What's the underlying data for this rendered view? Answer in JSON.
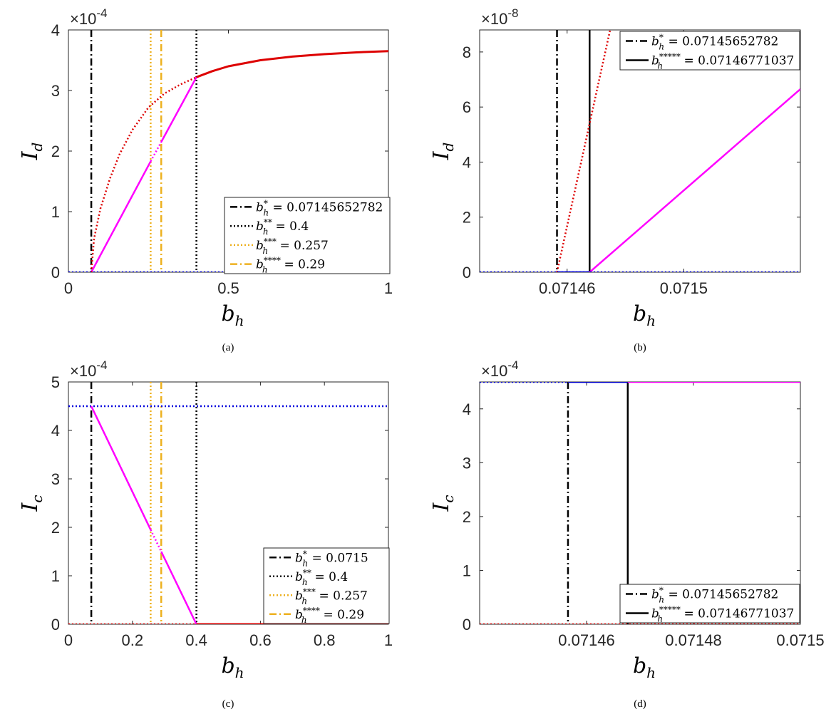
{
  "chart_data": [
    {
      "id": "a",
      "type": "line",
      "caption": "(a)",
      "xlabel": "b_h",
      "ylabel_main": "I",
      "ylabel_sub": "d",
      "xlim": [
        0,
        1
      ],
      "ylim": [
        0,
        4
      ],
      "y_multiplier_base": "×10",
      "y_multiplier_exp": "-4",
      "xticks": [
        0,
        0.5,
        1
      ],
      "xtick_labels": [
        "0",
        "0.5",
        "1"
      ],
      "yticks": [
        0,
        1,
        2,
        3,
        4
      ],
      "ytick_labels": [
        "0",
        "1",
        "2",
        "3",
        "4"
      ],
      "grid": false,
      "legend_position": "bottom-right",
      "vlines": [
        {
          "x": 0.07145652782,
          "style": "dashdot",
          "color": "#000000",
          "label_main": "b",
          "label_sup": "*",
          "label_value": " = 0.07145652782"
        },
        {
          "x": 0.4,
          "style": "dotted",
          "color": "#000000",
          "label_main": "b",
          "label_sup": "**",
          "label_value": " = 0.4"
        },
        {
          "x": 0.257,
          "style": "dotted",
          "color": "#EDB120",
          "label_main": "b",
          "label_sup": "***",
          "label_value": " = 0.257"
        },
        {
          "x": 0.29,
          "style": "dashdot",
          "color": "#EDB120",
          "label_main": "b",
          "label_sup": "****",
          "label_value": " = 0.29"
        }
      ],
      "series": [
        {
          "color": "#FF00FF",
          "style": "solid",
          "width": 2.5,
          "x": [
            0.07146,
            0.257
          ],
          "y": [
            0,
            1.83
          ]
        },
        {
          "color": "#FF00FF",
          "style": "dotted",
          "width": 2.5,
          "x": [
            0.257,
            0.29
          ],
          "y": [
            1.83,
            2.15
          ]
        },
        {
          "color": "#FF00FF",
          "style": "solid",
          "width": 2.5,
          "x": [
            0.29,
            0.4
          ],
          "y": [
            2.15,
            3.22
          ]
        },
        {
          "color": "#DD0000",
          "style": "dotted",
          "width": 2.5,
          "x": [
            0.07146,
            0.08,
            0.1,
            0.13,
            0.16,
            0.2,
            0.25,
            0.3,
            0.35,
            0.4
          ],
          "y": [
            0,
            0.55,
            1.05,
            1.55,
            1.95,
            2.35,
            2.72,
            2.95,
            3.1,
            3.22
          ]
        },
        {
          "color": "#DD0000",
          "style": "solid",
          "width": 3,
          "x": [
            0.4,
            0.45,
            0.5,
            0.6,
            0.7,
            0.8,
            0.9,
            1.0
          ],
          "y": [
            3.22,
            3.32,
            3.4,
            3.5,
            3.56,
            3.6,
            3.63,
            3.65
          ]
        },
        {
          "color": "#0000DD",
          "style": "dotted",
          "width": 2.5,
          "x": [
            0,
            1
          ],
          "y": [
            0,
            0
          ]
        }
      ]
    },
    {
      "id": "b",
      "type": "line",
      "caption": "(b)",
      "xlabel": "b_h",
      "ylabel_main": "I",
      "ylabel_sub": "d",
      "xlim": [
        0.07143,
        0.07154
      ],
      "ylim": [
        0,
        8.8
      ],
      "y_multiplier_base": "×10",
      "y_multiplier_exp": "-8",
      "xticks": [
        0.07146,
        0.0715
      ],
      "xtick_labels": [
        "0.07146",
        "0.0715"
      ],
      "yticks": [
        0,
        2,
        4,
        6,
        8
      ],
      "ytick_labels": [
        "0",
        "2",
        "4",
        "6",
        "8"
      ],
      "grid": false,
      "legend_position": "top-right",
      "vlines": [
        {
          "x": 0.07145652782,
          "style": "dashdot",
          "color": "#000000",
          "label_main": "b",
          "label_sup": "*",
          "label_value": " = 0.07145652782"
        },
        {
          "x": 0.07146771037,
          "style": "solid",
          "color": "#000000",
          "label_main": "b",
          "label_sup": "*****",
          "label_value": " = 0.07146771037"
        }
      ],
      "series": [
        {
          "color": "#DD0000",
          "style": "dotted",
          "width": 2.5,
          "x": [
            0.07145652782,
            0.07147475
          ],
          "y": [
            0,
            8.8
          ]
        },
        {
          "color": "#FF00FF",
          "style": "solid",
          "width": 2.5,
          "x": [
            0.07146771037,
            0.07154
          ],
          "y": [
            0,
            6.65
          ]
        },
        {
          "color": "#0000CC",
          "style": "solid",
          "width": 2.5,
          "x": [
            0.07145652782,
            0.07146771037
          ],
          "y": [
            0,
            0
          ]
        },
        {
          "color": "#0000DD",
          "style": "dotted",
          "width": 2.5,
          "x": [
            0.07143,
            0.07154
          ],
          "y": [
            0,
            0
          ]
        }
      ]
    },
    {
      "id": "c",
      "type": "line",
      "caption": "(c)",
      "xlabel": "b_h",
      "ylabel_main": "I",
      "ylabel_sub": "c",
      "xlim": [
        0,
        1
      ],
      "ylim": [
        0,
        5
      ],
      "y_multiplier_base": "×10",
      "y_multiplier_exp": "-4",
      "xticks": [
        0,
        0.2,
        0.4,
        0.6,
        0.8,
        1
      ],
      "xtick_labels": [
        "0",
        "0.2",
        "0.4",
        "0.6",
        "0.8",
        "1"
      ],
      "yticks": [
        0,
        1,
        2,
        3,
        4,
        5
      ],
      "ytick_labels": [
        "0",
        "1",
        "2",
        "3",
        "4",
        "5"
      ],
      "grid": false,
      "legend_position": "bottom-right",
      "vlines": [
        {
          "x": 0.0715,
          "style": "dashdot",
          "color": "#000000",
          "label_main": "b",
          "label_sup": "*",
          "label_value": " = 0.0715"
        },
        {
          "x": 0.4,
          "style": "dotted",
          "color": "#000000",
          "label_main": "b",
          "label_sup": "**",
          "label_value": " = 0.4"
        },
        {
          "x": 0.257,
          "style": "dotted",
          "color": "#EDB120",
          "label_main": "b",
          "label_sup": "***",
          "label_value": " = 0.257"
        },
        {
          "x": 0.29,
          "style": "dashdot",
          "color": "#EDB120",
          "label_main": "b",
          "label_sup": "****",
          "label_value": " = 0.29"
        }
      ],
      "series": [
        {
          "color": "#0000DD",
          "style": "dotted",
          "width": 2.5,
          "x": [
            0,
            1
          ],
          "y": [
            4.5,
            4.5
          ]
        },
        {
          "color": "#FF00FF",
          "style": "solid",
          "width": 2.5,
          "x": [
            0.0715,
            0.257
          ],
          "y": [
            4.5,
            1.95
          ]
        },
        {
          "color": "#FF00FF",
          "style": "dotted",
          "width": 2.5,
          "x": [
            0.257,
            0.29
          ],
          "y": [
            1.95,
            1.5
          ]
        },
        {
          "color": "#FF00FF",
          "style": "solid",
          "width": 2.5,
          "x": [
            0.29,
            0.4
          ],
          "y": [
            1.5,
            0
          ]
        },
        {
          "color": "#DD0000",
          "style": "dotted",
          "width": 2.5,
          "x": [
            0,
            0.4
          ],
          "y": [
            0,
            0
          ]
        },
        {
          "color": "#DD0000",
          "style": "solid",
          "width": 3,
          "x": [
            0.4,
            1
          ],
          "y": [
            0,
            0
          ]
        }
      ]
    },
    {
      "id": "d",
      "type": "line",
      "caption": "(d)",
      "xlabel": "b_h",
      "ylabel_main": "I",
      "ylabel_sub": "c",
      "xlim": [
        0.07144,
        0.0715
      ],
      "ylim": [
        0,
        4.5
      ],
      "y_multiplier_base": "×10",
      "y_multiplier_exp": "-4",
      "xticks": [
        0.07146,
        0.07148,
        0.0715
      ],
      "xtick_labels": [
        "0.07146",
        "0.07148",
        "0.0715"
      ],
      "yticks": [
        0,
        1,
        2,
        3,
        4
      ],
      "ytick_labels": [
        "0",
        "1",
        "2",
        "3",
        "4"
      ],
      "grid": false,
      "legend_position": "bottom-right",
      "vlines": [
        {
          "x": 0.07145652782,
          "style": "dashdot",
          "color": "#000000",
          "label_main": "b",
          "label_sup": "*",
          "label_value": " = 0.07145652782"
        },
        {
          "x": 0.07146771037,
          "style": "solid",
          "color": "#000000",
          "label_main": "b",
          "label_sup": "*****",
          "label_value": " = 0.07146771037"
        }
      ],
      "series": [
        {
          "color": "#0000DD",
          "style": "dotted",
          "width": 2.5,
          "x": [
            0.07144,
            0.07145652782
          ],
          "y": [
            4.5,
            4.5
          ]
        },
        {
          "color": "#0000CC",
          "style": "solid",
          "width": 2.5,
          "x": [
            0.07145652782,
            0.07146771037
          ],
          "y": [
            4.5,
            4.5
          ]
        },
        {
          "color": "#FF00FF",
          "style": "solid",
          "width": 2.5,
          "x": [
            0.07146771037,
            0.0715
          ],
          "y": [
            4.5,
            4.5
          ]
        },
        {
          "color": "#DD0000",
          "style": "dotted",
          "width": 2.5,
          "x": [
            0.07144,
            0.0715
          ],
          "y": [
            0,
            0
          ]
        }
      ]
    }
  ]
}
